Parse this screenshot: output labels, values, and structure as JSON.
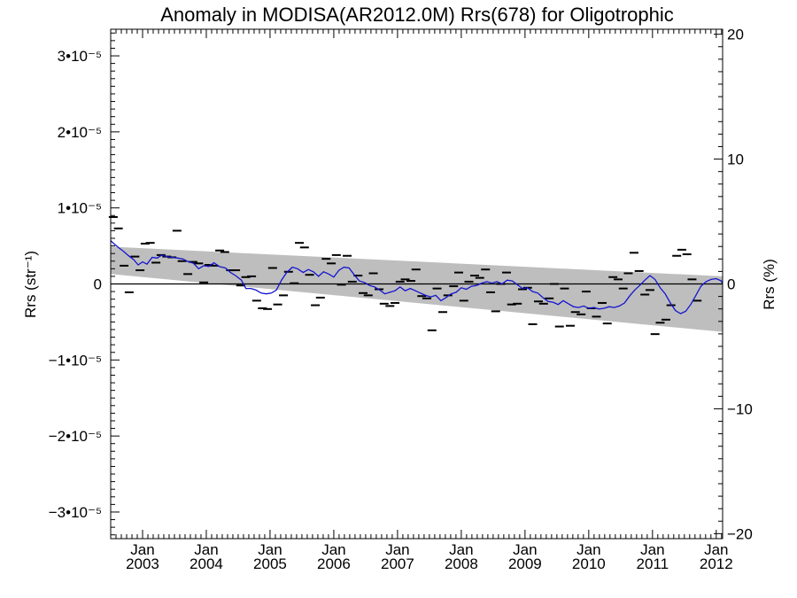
{
  "chart_data": {
    "type": "scatter",
    "title": "Anomaly in MODISA(AR2012.0M) Rrs(678) for Oligotrophic",
    "ylabel_left": "Rrs (str⁻¹)",
    "ylabel_right": "Rrs (%)",
    "ylim": [
      -3.35e-05,
      3.35e-05
    ],
    "xlim": [
      2002.5,
      2012.1
    ],
    "ylim_right": [
      -20.4,
      20.4
    ],
    "grid": false,
    "y_ticks_left": [
      {
        "value": 3e-05,
        "label": "3•10⁻⁵"
      },
      {
        "value": 2e-05,
        "label": "2•10⁻⁵"
      },
      {
        "value": 1e-05,
        "label": "1•10⁻⁵"
      },
      {
        "value": 0,
        "label": "0"
      },
      {
        "value": -1e-05,
        "label": "−1•10⁻⁵"
      },
      {
        "value": -2e-05,
        "label": "−2•10⁻⁵"
      },
      {
        "value": -3e-05,
        "label": "−3•10⁻⁵"
      }
    ],
    "y_ticks_right": [
      {
        "value": 20,
        "label": "20"
      },
      {
        "value": 10,
        "label": "10"
      },
      {
        "value": 0,
        "label": "0"
      },
      {
        "value": -10,
        "label": "−10"
      },
      {
        "value": -20,
        "label": "−20"
      }
    ],
    "x_ticks": [
      {
        "value": 2003,
        "month": "Jan",
        "year": "2003"
      },
      {
        "value": 2004,
        "month": "Jan",
        "year": "2004"
      },
      {
        "value": 2005,
        "month": "Jan",
        "year": "2005"
      },
      {
        "value": 2006,
        "month": "Jan",
        "year": "2006"
      },
      {
        "value": 2007,
        "month": "Jan",
        "year": "2007"
      },
      {
        "value": 2008,
        "month": "Jan",
        "year": "2008"
      },
      {
        "value": 2009,
        "month": "Jan",
        "year": "2009"
      },
      {
        "value": 2010,
        "month": "Jan",
        "year": "2010"
      },
      {
        "value": 2011,
        "month": "Jan",
        "year": "2011"
      },
      {
        "value": 2012,
        "month": "Jan",
        "year": "2012"
      }
    ],
    "trend_band": {
      "upper": [
        [
          2002.5,
          4.9e-06
        ],
        [
          2012.1,
          1e-06
        ]
      ],
      "lower": [
        [
          2002.5,
          1.3e-06
        ],
        [
          2012.1,
          -6.3e-06
        ]
      ],
      "color": "#bebebe"
    },
    "zero_line_color": "#000000",
    "series": [
      {
        "style": "dash",
        "color": "#000000",
        "points": [
          [
            2002.54,
            8.8e-06
          ],
          [
            2002.62,
            7.3e-06
          ],
          [
            2002.71,
            2.4e-06
          ],
          [
            2002.79,
            -1.1e-06
          ],
          [
            2002.88,
            3.6e-06
          ],
          [
            2002.96,
            1.8e-06
          ],
          [
            2003.04,
            5.3e-06
          ],
          [
            2003.12,
            5.4e-06
          ],
          [
            2003.21,
            2.8e-06
          ],
          [
            2003.29,
            3.8e-06
          ],
          [
            2003.38,
            3.6e-06
          ],
          [
            2003.46,
            3.5e-06
          ],
          [
            2003.54,
            7e-06
          ],
          [
            2003.62,
            3e-06
          ],
          [
            2003.71,
            1.3e-06
          ],
          [
            2003.79,
            2.9e-06
          ],
          [
            2003.88,
            2.7e-06
          ],
          [
            2003.96,
            2e-07
          ],
          [
            2004.04,
            2.5e-06
          ],
          [
            2004.12,
            2.4e-06
          ],
          [
            2004.21,
            4.4e-06
          ],
          [
            2004.29,
            4.2e-06
          ],
          [
            2004.38,
            1.8e-06
          ],
          [
            2004.46,
            1.8e-06
          ],
          [
            2004.54,
            -2e-07
          ],
          [
            2004.62,
            9e-07
          ],
          [
            2004.71,
            1e-06
          ],
          [
            2004.79,
            -2.2e-06
          ],
          [
            2004.88,
            -3.2e-06
          ],
          [
            2004.96,
            -3.3e-06
          ],
          [
            2005.04,
            2.1e-06
          ],
          [
            2005.12,
            -2.7e-06
          ],
          [
            2005.21,
            -1.5e-06
          ],
          [
            2005.29,
            1.6e-06
          ],
          [
            2005.38,
            1e-07
          ],
          [
            2005.46,
            5.4e-06
          ],
          [
            2005.54,
            4.8e-06
          ],
          [
            2005.62,
            1.2e-06
          ],
          [
            2005.71,
            -2.8e-06
          ],
          [
            2005.79,
            -1.8e-06
          ],
          [
            2005.88,
            3.3e-06
          ],
          [
            2005.96,
            2.7e-06
          ],
          [
            2006.04,
            3.8e-06
          ],
          [
            2006.12,
            -1e-07
          ],
          [
            2006.21,
            3.7e-06
          ],
          [
            2006.29,
            3e-07
          ],
          [
            2006.38,
            1.1e-06
          ],
          [
            2006.46,
            -1.2e-06
          ],
          [
            2006.54,
            -1.5e-06
          ],
          [
            2006.62,
            1.4e-06
          ],
          [
            2006.71,
            -7e-07
          ],
          [
            2006.79,
            -2.6e-06
          ],
          [
            2006.88,
            -2.9e-06
          ],
          [
            2006.96,
            -2.5e-06
          ],
          [
            2007.04,
            3e-07
          ],
          [
            2007.12,
            6e-07
          ],
          [
            2007.21,
            4e-07
          ],
          [
            2007.29,
            1.9e-06
          ],
          [
            2007.38,
            -1.6e-06
          ],
          [
            2007.46,
            -1.9e-06
          ],
          [
            2007.54,
            -6.1e-06
          ],
          [
            2007.62,
            -6e-07
          ],
          [
            2007.71,
            -3.7e-06
          ],
          [
            2007.79,
            -1.5e-06
          ],
          [
            2007.88,
            -3e-07
          ],
          [
            2007.96,
            1.5e-06
          ],
          [
            2008.04,
            -2.2e-06
          ],
          [
            2008.12,
            3e-07
          ],
          [
            2008.21,
            1.1e-06
          ],
          [
            2008.29,
            8e-07
          ],
          [
            2008.38,
            1.9e-06
          ],
          [
            2008.46,
            -1.1e-06
          ],
          [
            2008.54,
            -3.6e-06
          ],
          [
            2008.62,
            0.0
          ],
          [
            2008.71,
            1.5e-06
          ],
          [
            2008.79,
            -2.7e-06
          ],
          [
            2008.88,
            -2.6e-06
          ],
          [
            2008.96,
            -7e-07
          ],
          [
            2009.04,
            -5e-07
          ],
          [
            2009.12,
            -5.3e-06
          ],
          [
            2009.21,
            -2.3e-06
          ],
          [
            2009.29,
            -2.6e-06
          ],
          [
            2009.38,
            -1.9e-06
          ],
          [
            2009.46,
            0.0
          ],
          [
            2009.54,
            -5.6e-06
          ],
          [
            2009.62,
            -6e-07
          ],
          [
            2009.71,
            -5.5e-06
          ],
          [
            2009.79,
            -3.7e-06
          ],
          [
            2009.88,
            -4e-06
          ],
          [
            2009.96,
            -1e-06
          ],
          [
            2010.04,
            -3.2e-06
          ],
          [
            2010.12,
            -4.3e-06
          ],
          [
            2010.21,
            -2.5e-06
          ],
          [
            2010.29,
            -5.2e-06
          ],
          [
            2010.38,
            9e-07
          ],
          [
            2010.46,
            6e-07
          ],
          [
            2010.54,
            -6e-07
          ],
          [
            2010.62,
            1.4e-06
          ],
          [
            2010.71,
            4.1e-06
          ],
          [
            2010.79,
            1.7e-06
          ],
          [
            2010.88,
            -1.4e-06
          ],
          [
            2010.96,
            -8e-07
          ],
          [
            2011.04,
            -6.6e-06
          ],
          [
            2011.12,
            -5.1e-06
          ],
          [
            2011.21,
            -4.7e-06
          ],
          [
            2011.29,
            -2.8e-06
          ],
          [
            2011.38,
            3.7e-06
          ],
          [
            2011.46,
            4.5e-06
          ],
          [
            2011.54,
            3.9e-06
          ],
          [
            2011.62,
            6e-07
          ],
          [
            2011.7,
            -2.2e-06
          ]
        ]
      },
      {
        "style": "line",
        "color": "#1414d2",
        "points": [
          [
            2002.5,
            5.7e-06
          ],
          [
            2002.55,
            5.3e-06
          ],
          [
            2002.62,
            4.8e-06
          ],
          [
            2002.7,
            4.3e-06
          ],
          [
            2002.78,
            3.7e-06
          ],
          [
            2002.86,
            3.2e-06
          ],
          [
            2002.93,
            2.5e-06
          ],
          [
            2003.0,
            2.9e-06
          ],
          [
            2003.07,
            2.6e-06
          ],
          [
            2003.15,
            3.5e-06
          ],
          [
            2003.23,
            3.4e-06
          ],
          [
            2003.3,
            3.8e-06
          ],
          [
            2003.38,
            3.6e-06
          ],
          [
            2003.46,
            3.5e-06
          ],
          [
            2003.55,
            3.4e-06
          ],
          [
            2003.63,
            3.3e-06
          ],
          [
            2003.7,
            3e-06
          ],
          [
            2003.8,
            2.7e-06
          ],
          [
            2003.88,
            2e-06
          ],
          [
            2003.96,
            2.4e-06
          ],
          [
            2004.04,
            2.3e-06
          ],
          [
            2004.12,
            2.8e-06
          ],
          [
            2004.2,
            2.3e-06
          ],
          [
            2004.3,
            2.1e-06
          ],
          [
            2004.38,
            1.5e-06
          ],
          [
            2004.46,
            1.1e-06
          ],
          [
            2004.55,
            5e-07
          ],
          [
            2004.62,
            -6e-07
          ],
          [
            2004.7,
            -6e-07
          ],
          [
            2004.78,
            -8e-07
          ],
          [
            2004.86,
            -1.2e-06
          ],
          [
            2004.94,
            -1.3e-06
          ],
          [
            2005.02,
            -1.2e-06
          ],
          [
            2005.1,
            -8e-07
          ],
          [
            2005.18,
            5e-07
          ],
          [
            2005.26,
            1.5e-06
          ],
          [
            2005.35,
            2.2e-06
          ],
          [
            2005.43,
            2e-06
          ],
          [
            2005.52,
            1.5e-06
          ],
          [
            2005.6,
            1.9e-06
          ],
          [
            2005.68,
            1.6e-06
          ],
          [
            2005.76,
            1e-06
          ],
          [
            2005.84,
            1.6e-06
          ],
          [
            2005.92,
            1.3e-06
          ],
          [
            2006.0,
            9e-07
          ],
          [
            2006.08,
            1.8e-06
          ],
          [
            2006.16,
            2.2e-06
          ],
          [
            2006.24,
            2.1e-06
          ],
          [
            2006.32,
            1.2e-06
          ],
          [
            2006.4,
            4e-07
          ],
          [
            2006.48,
            2e-07
          ],
          [
            2006.56,
            -2e-07
          ],
          [
            2006.64,
            -4e-07
          ],
          [
            2006.72,
            -8e-07
          ],
          [
            2006.8,
            -1.3e-06
          ],
          [
            2006.88,
            -1.1e-06
          ],
          [
            2006.96,
            -9e-07
          ],
          [
            2007.04,
            -4e-07
          ],
          [
            2007.12,
            -9e-07
          ],
          [
            2007.2,
            -6e-07
          ],
          [
            2007.28,
            -9e-07
          ],
          [
            2007.36,
            -1.2e-06
          ],
          [
            2007.44,
            -1.5e-06
          ],
          [
            2007.52,
            -1.7e-06
          ],
          [
            2007.6,
            -1.5e-06
          ],
          [
            2007.68,
            -2.2e-06
          ],
          [
            2007.76,
            -1.8e-06
          ],
          [
            2007.84,
            -1.3e-06
          ],
          [
            2007.92,
            -1.1e-06
          ],
          [
            2008.0,
            -5e-07
          ],
          [
            2008.08,
            -7e-07
          ],
          [
            2008.16,
            -3e-07
          ],
          [
            2008.24,
            -2e-07
          ],
          [
            2008.32,
            1e-07
          ],
          [
            2008.4,
            3e-07
          ],
          [
            2008.48,
            1e-07
          ],
          [
            2008.56,
            3e-07
          ],
          [
            2008.64,
            0.0
          ],
          [
            2008.72,
            5e-07
          ],
          [
            2008.8,
            4e-07
          ],
          [
            2008.88,
            -1e-07
          ],
          [
            2008.96,
            -6e-07
          ],
          [
            2009.04,
            -5e-07
          ],
          [
            2009.12,
            -1e-06
          ],
          [
            2009.2,
            -1.2e-06
          ],
          [
            2009.28,
            -1.8e-06
          ],
          [
            2009.36,
            -2.3e-06
          ],
          [
            2009.44,
            -2.4e-06
          ],
          [
            2009.52,
            -2.7e-06
          ],
          [
            2009.6,
            -2.2e-06
          ],
          [
            2009.68,
            -2.6e-06
          ],
          [
            2009.76,
            -3e-06
          ],
          [
            2009.84,
            -3.1e-06
          ],
          [
            2009.92,
            -2.9e-06
          ],
          [
            2010.0,
            -3.2e-06
          ],
          [
            2010.08,
            -3.1e-06
          ],
          [
            2010.16,
            -3.3e-06
          ],
          [
            2010.24,
            -3.2e-06
          ],
          [
            2010.32,
            -3e-06
          ],
          [
            2010.4,
            -3.1e-06
          ],
          [
            2010.48,
            -2.9e-06
          ],
          [
            2010.56,
            -2.5e-06
          ],
          [
            2010.64,
            -1.6e-06
          ],
          [
            2010.72,
            -8e-07
          ],
          [
            2010.8,
            -2e-07
          ],
          [
            2010.88,
            5e-07
          ],
          [
            2010.96,
            1.1e-06
          ],
          [
            2011.04,
            6e-07
          ],
          [
            2011.12,
            -5e-07
          ],
          [
            2011.2,
            -1.3e-06
          ],
          [
            2011.28,
            -2.5e-06
          ],
          [
            2011.36,
            -3.5e-06
          ],
          [
            2011.44,
            -3.9e-06
          ],
          [
            2011.52,
            -3.6e-06
          ],
          [
            2011.6,
            -2.7e-06
          ],
          [
            2011.68,
            -1.5e-06
          ],
          [
            2011.76,
            -3e-07
          ],
          [
            2011.84,
            3e-07
          ],
          [
            2011.92,
            6e-07
          ],
          [
            2012.0,
            7e-07
          ],
          [
            2012.08,
            4e-07
          ],
          [
            2012.1,
            0.0
          ]
        ]
      }
    ]
  }
}
